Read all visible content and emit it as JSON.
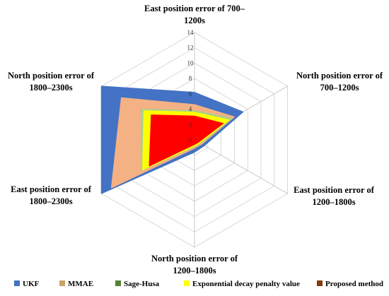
{
  "chart_data": {
    "type": "radar",
    "axes": [
      {
        "lines": [
          "East position error of 700–",
          "1200s"
        ]
      },
      {
        "lines": [
          "North position error of",
          "700–1200s"
        ]
      },
      {
        "lines": [
          "East position error of",
          "1200–1800s"
        ]
      },
      {
        "lines": [
          "North position error of",
          "1200–1800s"
        ]
      },
      {
        "lines": [
          "East position error of",
          "1800–2300s"
        ]
      },
      {
        "lines": [
          "North position error of",
          "1800–2300s"
        ]
      }
    ],
    "rlim": [
      0,
      14
    ],
    "ticks": [
      "0",
      "2",
      "4",
      "6",
      "8",
      "10",
      "12",
      "14"
    ],
    "grid": true,
    "legend_position": "bottom",
    "series": [
      {
        "name": "UKF",
        "color": "#4472C4",
        "values": [
          6.2,
          7.3,
          1.5,
          1.6,
          14.0,
          14.0
        ]
      },
      {
        "name": "MMAE",
        "color": "#F4B183",
        "values": [
          4.6,
          6.0,
          1.1,
          1.1,
          12.5,
          11.0
        ]
      },
      {
        "name": "Sage-Husa",
        "color": "#A9D18E",
        "values": [
          3.8,
          5.6,
          0.9,
          0.9,
          8.0,
          8.0
        ]
      },
      {
        "name": "Exponential decay penalty value",
        "color": "#FFFF00",
        "values": [
          3.6,
          5.2,
          0.8,
          0.8,
          7.8,
          7.6
        ]
      },
      {
        "name": "Proposed method",
        "color": "#FF0000",
        "values": [
          3.1,
          4.3,
          0.6,
          0.6,
          6.8,
          6.5
        ]
      }
    ],
    "legend_colors": [
      "#4472C4",
      "#C9A46A",
      "#548235",
      "#FFFF00",
      "#843C0C"
    ]
  }
}
